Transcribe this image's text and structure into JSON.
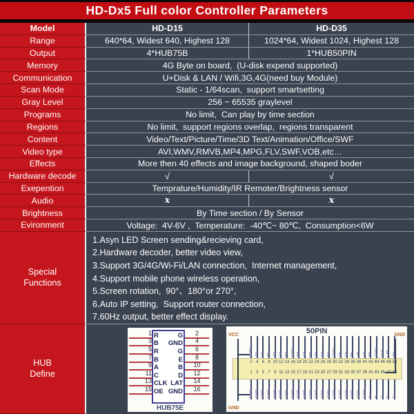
{
  "title": "HD-Dx5 Full color Controller Parameters",
  "table": {
    "rows": [
      {
        "label": "Model",
        "type": "two",
        "bold": true,
        "c1": "HD-D15",
        "c2": "HD-D35"
      },
      {
        "label": "Range",
        "type": "two",
        "c1": "640*64, Widest 640, Highest 128",
        "c2": "1024*64, Widest 1024, Highest 128"
      },
      {
        "label": "Output",
        "type": "two",
        "c1": "4*HUB75B",
        "c2": "1*HUB50PIN"
      },
      {
        "label": "Memory",
        "type": "span",
        "value": "4G Byte on board,  (U-disk expend supported)"
      },
      {
        "label": "Communication",
        "type": "span",
        "value": "U+Disk & LAN / Wifi,3G,4G(need buy Module)"
      },
      {
        "label": "Scan Mode",
        "type": "span",
        "value": "Static - 1/64scan,  support smartsetting"
      },
      {
        "label": "Gray Level",
        "type": "span",
        "value": "256 ~ 65535 graylevel"
      },
      {
        "label": "Programs",
        "type": "span",
        "value": "No limit,  Can play by time section"
      },
      {
        "label": "Regions",
        "type": "span",
        "value": "No limit,  support regions overlap,  regions transparent"
      },
      {
        "label": "Content",
        "type": "span",
        "value": "Video/Text/Picture/Time/3D Text/Animation/Office/SWF"
      },
      {
        "label": "Video type",
        "type": "span",
        "value": "AVI,WMV,RMVB,MP4,MPG,FLV,SWF,VOB,etc…"
      },
      {
        "label": "Effects",
        "type": "span",
        "value": "More then 40 effects and image background, shaped boder"
      },
      {
        "label": "Hardware decode",
        "type": "two",
        "mark": "check",
        "c1": "√",
        "c2": "√"
      },
      {
        "label": "Exepention",
        "type": "span",
        "value": "Temprature/Humidity/IR Remoter/Brightness sensor"
      },
      {
        "label": "Audio",
        "type": "two",
        "mark": "xmark",
        "c1": "x",
        "c2": "x"
      },
      {
        "label": "Brightness",
        "type": "span",
        "value": "By Time section / By Sensor"
      },
      {
        "label": "Evironment",
        "type": "span",
        "value": "Voltage:  4V-6V ,  Temperature:  -40℃~ 80℃,  Consumption<6W"
      }
    ]
  },
  "special_functions": {
    "label_lines": [
      "Special",
      "Functions"
    ],
    "lines": [
      "1.Asyn LED Screen sending&recieving card,",
      "2.Hardware decoder, better video view,",
      "3.Support 3G/4G/Wi-Fi/LAN connection,  Internet management,",
      "4.Support mobile phone wireless operation,",
      "5.Screen rotation,  90°、180°or 270°,",
      "6.Auto IP setting,  Support router connection,",
      "7.60Hz output, better effect display."
    ]
  },
  "hub_define": {
    "label_lines": [
      "HUB",
      "Define"
    ],
    "hub75": {
      "name": "HUB75E",
      "left_pin_numbers": [
        "1",
        "3",
        "5",
        "7",
        "9",
        "11",
        "13",
        "15"
      ],
      "right_pin_numbers": [
        "2",
        "4",
        "6",
        "8",
        "10",
        "12",
        "14",
        "16"
      ],
      "left_signals": [
        "R",
        "B",
        "R",
        "B",
        "A",
        "C",
        "CLK",
        "OE"
      ],
      "right_signals": [
        "G",
        "GND",
        "G",
        "E",
        "B",
        "D",
        "LAT",
        "GND"
      ]
    },
    "pin50": {
      "title": "50PIN",
      "vcc_label": "VCC",
      "gnd_top_label": "GND",
      "gnd_bottom_label": "GND",
      "top_numbers": [
        "2",
        "4",
        "6",
        "8",
        "10",
        "12",
        "14",
        "16",
        "18",
        "20",
        "22",
        "24",
        "26",
        "28",
        "30",
        "32",
        "34",
        "36",
        "38",
        "40",
        "42",
        "44",
        "46",
        "48",
        "50"
      ],
      "bottom_numbers": [
        "1",
        "3",
        "5",
        "7",
        "9",
        "11",
        "13",
        "15",
        "17",
        "19",
        "21",
        "23",
        "25",
        "27",
        "29",
        "31",
        "33",
        "35",
        "37",
        "39",
        "41",
        "43",
        "45",
        "47",
        "49"
      ],
      "top_signals": [
        "GND",
        "R1",
        "G1",
        "B1",
        "R2",
        "G2",
        "B2",
        "GND",
        "R3",
        "G3",
        "B3",
        "R4",
        "G4",
        "B4",
        "GND",
        "R5",
        "G5",
        "B5",
        "R6",
        "G6",
        "B6",
        "GND",
        "CLK",
        "LAT",
        "OE"
      ],
      "bottom_signals": [
        "GND",
        "GND",
        "GND",
        "GND",
        "GND",
        "GND",
        "GND",
        "GND",
        "GND",
        "GND",
        "GND",
        "GND",
        "GND",
        "GND",
        "GND",
        "GND",
        "GND",
        "GND",
        "GND",
        "GND",
        "A",
        "B",
        "C",
        "D",
        "E"
      ]
    }
  },
  "colors": {
    "title_red": "#c20d12",
    "label_red": "#c4161c",
    "table_navy": "#3a424f",
    "divider_light": "#e9edf2",
    "diagram_blue": "#3e3e9a",
    "pin_line_red": "#b23a3a",
    "band_yellow": "#f3edae",
    "vcc_orange": "#b06018"
  }
}
